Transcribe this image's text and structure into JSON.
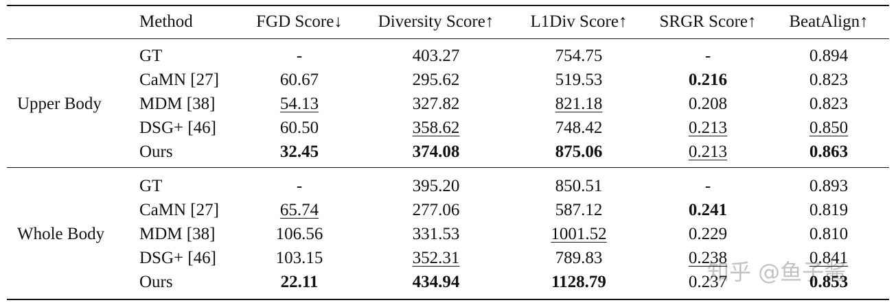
{
  "table": {
    "header": [
      "Method",
      "FGD Score↓",
      "Diversity Score↑",
      "L1Div Score↑",
      "SRGR Score↑",
      "BeatAlign↑"
    ],
    "groups": [
      {
        "label": "Upper Body",
        "rows": [
          {
            "method": "GT",
            "cells": [
              "-",
              "403.27",
              "754.75",
              "-",
              "0.894"
            ]
          },
          {
            "method": "CaMN [27]",
            "cells": [
              "60.67",
              "295.62",
              "519.53",
              {
                "text": "0.216",
                "style": "bold"
              },
              "0.823"
            ]
          },
          {
            "method": "MDM [38]",
            "cells": [
              {
                "text": "54.13",
                "style": "underline"
              },
              "327.82",
              {
                "text": "821.18",
                "style": "underline"
              },
              "0.208",
              "0.823"
            ]
          },
          {
            "method": "DSG+ [46]",
            "cells": [
              "60.50",
              {
                "text": "358.62",
                "style": "underline"
              },
              "748.42",
              {
                "text": "0.213",
                "style": "underline"
              },
              {
                "text": "0.850",
                "style": "underline"
              }
            ]
          },
          {
            "method": "Ours",
            "cells": [
              {
                "text": "32.45",
                "style": "bold"
              },
              {
                "text": "374.08",
                "style": "bold"
              },
              {
                "text": "875.06",
                "style": "bold"
              },
              {
                "text": "0.213",
                "style": "underline"
              },
              {
                "text": "0.863",
                "style": "bold"
              }
            ]
          }
        ]
      },
      {
        "label": "Whole Body",
        "rows": [
          {
            "method": "GT",
            "cells": [
              "-",
              "395.20",
              "850.51",
              "-",
              "0.893"
            ]
          },
          {
            "method": "CaMN [27]",
            "cells": [
              {
                "text": "65.74",
                "style": "underline"
              },
              "277.06",
              "587.12",
              {
                "text": "0.241",
                "style": "bold"
              },
              "0.819"
            ]
          },
          {
            "method": "MDM [38]",
            "cells": [
              "106.56",
              "331.53",
              {
                "text": "1001.52",
                "style": "underline"
              },
              "0.229",
              "0.810"
            ]
          },
          {
            "method": "DSG+ [46]",
            "cells": [
              "103.15",
              {
                "text": "352.31",
                "style": "underline"
              },
              "789.83",
              {
                "text": "0.238",
                "style": "underline"
              },
              {
                "text": "0.841",
                "style": "underline"
              }
            ]
          },
          {
            "method": "Ours",
            "cells": [
              {
                "text": "22.11",
                "style": "bold"
              },
              {
                "text": "434.94",
                "style": "bold"
              },
              {
                "text": "1128.79",
                "style": "bold"
              },
              "0.237",
              {
                "text": "0.853",
                "style": "bold"
              }
            ]
          }
        ]
      }
    ]
  },
  "watermark": "知乎 @鱼子酱"
}
